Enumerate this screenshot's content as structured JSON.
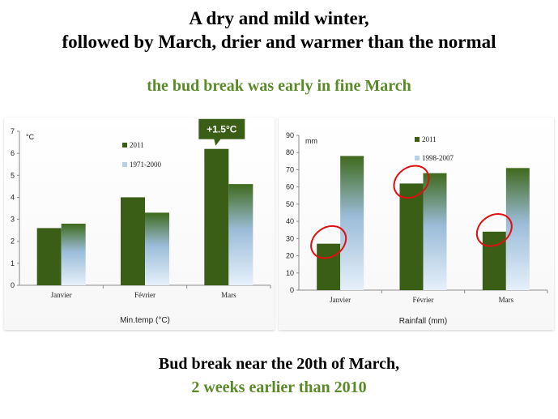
{
  "header": {
    "title_line1": "A dry and mild winter,",
    "title_line2": "followed by March, drier and warmer than the normal",
    "subtitle": "the bud break was early in fine March"
  },
  "footer": {
    "line1": "Bud break near the 20th of March,",
    "line2": "2 weeks earlier than 2010"
  },
  "colors": {
    "dark_green": "#3b5e17",
    "light_top": "#3f6a1c",
    "light_bottom": "#e6f0fa",
    "subtitle_green": "#5a8a28",
    "circle_red": "#e01010"
  },
  "chart_data": [
    {
      "type": "bar",
      "title": "",
      "unit": "°C",
      "xlabel": "Min.temp (°C)",
      "ylabel": "",
      "categories": [
        "Janvier",
        "Février",
        "Mars"
      ],
      "ylim": [
        0,
        7
      ],
      "yticks": [
        "0",
        "1",
        "2",
        "3",
        "4",
        "5",
        "6",
        "7"
      ],
      "series": [
        {
          "name": "2011",
          "values": [
            2.6,
            4.0,
            6.2
          ]
        },
        {
          "name": "1971-2000",
          "values": [
            2.8,
            3.3,
            4.6
          ]
        }
      ],
      "annotation": "+1.5°C",
      "grid": false,
      "legend": "top-center"
    },
    {
      "type": "bar",
      "title": "",
      "unit": "mm",
      "xlabel": "Rainfall (mm)",
      "ylabel": "",
      "categories": [
        "Janvier",
        "Février",
        "Mars"
      ],
      "ylim": [
        0,
        90
      ],
      "yticks": [
        "0",
        "10",
        "20",
        "30",
        "40",
        "50",
        "60",
        "70",
        "80",
        "90"
      ],
      "series": [
        {
          "name": "2011",
          "values": [
            27,
            62,
            34
          ]
        },
        {
          "name": "1998-2007",
          "values": [
            78,
            68,
            71
          ]
        }
      ],
      "highlighted": [
        "Janvier",
        "Février",
        "Mars"
      ],
      "grid": false,
      "legend": "top-center"
    }
  ]
}
